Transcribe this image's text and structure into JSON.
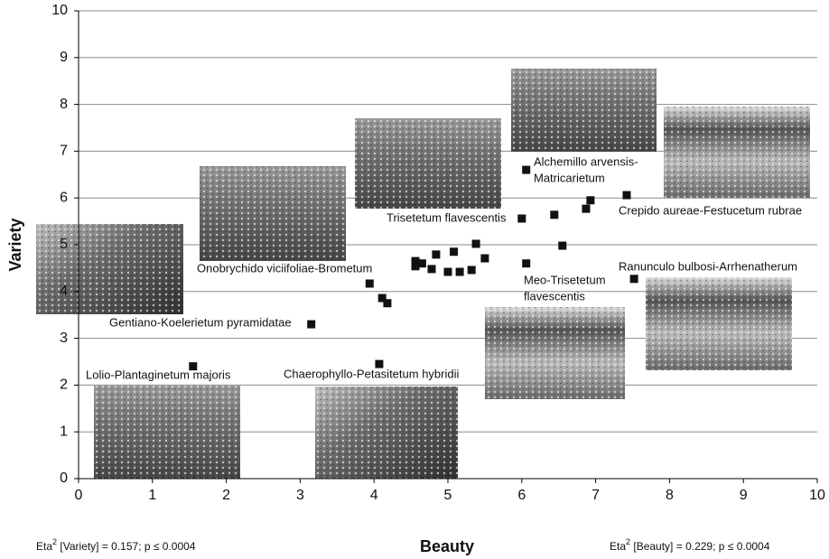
{
  "chart_data": {
    "type": "scatter",
    "x_label": "Beauty",
    "y_label": "Variety",
    "xlim": [
      0,
      10
    ],
    "ylim": [
      0,
      10
    ],
    "xticks": [
      0,
      1,
      2,
      3,
      4,
      5,
      6,
      7,
      8,
      9,
      10
    ],
    "yticks": [
      0,
      1,
      2,
      3,
      4,
      5,
      6,
      7,
      8,
      9,
      10
    ],
    "grid": true,
    "color": "#111111",
    "x": [
      1.55,
      3.15,
      3.94,
      4.11,
      4.18,
      4.07,
      4.56,
      4.56,
      4.65,
      4.78,
      4.84,
      5.0,
      5.08,
      5.16,
      5.32,
      5.38,
      5.5,
      6.0,
      6.06,
      6.06,
      6.44,
      6.55,
      6.87,
      6.93,
      7.42,
      7.52
    ],
    "y": [
      2.4,
      3.3,
      4.17,
      3.86,
      3.75,
      2.45,
      4.65,
      4.54,
      4.6,
      4.48,
      4.79,
      4.42,
      4.85,
      4.42,
      4.46,
      5.02,
      4.71,
      5.56,
      4.6,
      6.6,
      5.64,
      4.98,
      5.77,
      5.95,
      6.06,
      4.27
    ],
    "annotations": [
      {
        "lines": [
          "Lolio-Plantaginetum majoris"
        ]
      },
      {
        "lines": [
          "Gentiano-Koelerietum pyramidatae"
        ]
      },
      {
        "lines": [
          "Onobrychido viciifoliae-Brometum"
        ]
      },
      {
        "lines": [
          "Chaerophyllo-Petasitetum hybridii"
        ]
      },
      {
        "lines": [
          "Trisetetum flavescentis"
        ]
      },
      {
        "lines": [
          "Alchemillo arvensis-",
          "Matricarietum"
        ]
      },
      {
        "lines": [
          "Crepido aureae-Festucetum rubrae"
        ]
      },
      {
        "lines": [
          "Ranunculo bulbosi-Arrhenatherum"
        ]
      },
      {
        "lines": [
          "Meo-Trisetetum",
          "flavescentis"
        ]
      }
    ],
    "footnotes": [
      {
        "text": "Eta",
        "sup": "2",
        "rest": " [Variety] = 0.157; p ≤ 0.0004"
      },
      {
        "text": "Eta",
        "sup": "2",
        "rest": " [Beauty] = 0.229; p ≤ 0.0004"
      }
    ]
  }
}
